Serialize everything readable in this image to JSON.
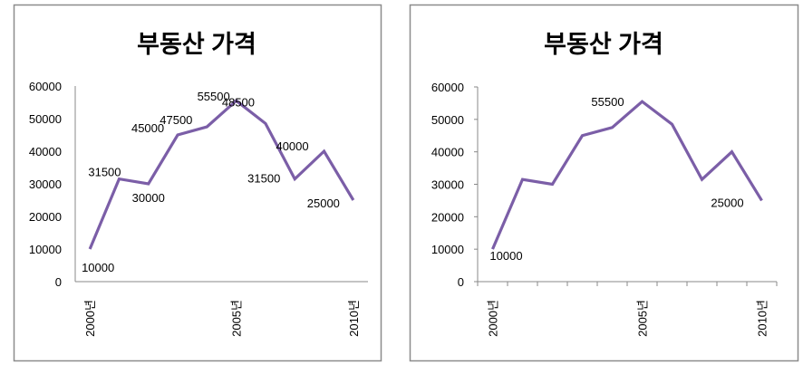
{
  "chart_data": [
    {
      "type": "line",
      "title": "부동산 가격",
      "categories": [
        "2000년",
        "",
        "",
        "",
        "",
        "2005년",
        "",
        "",
        "",
        "2010년"
      ],
      "values": [
        10000,
        31500,
        30000,
        45000,
        47500,
        55500,
        48500,
        31500,
        40000,
        25000
      ],
      "data_labels": [
        "10000",
        "31500",
        "30000",
        "45000",
        "47500",
        "55500",
        "48500",
        "31500",
        "40000",
        "25000"
      ],
      "ylim": [
        0,
        60000
      ],
      "y_ticks": [
        "0",
        "10000",
        "20000",
        "30000",
        "40000",
        "50000",
        "60000"
      ],
      "grid": false,
      "legend": "none",
      "x_tick_marks": false,
      "line_color": "#7b5ea7"
    },
    {
      "type": "line",
      "title": "부동산 가격",
      "categories": [
        "2000년",
        "",
        "",
        "",
        "",
        "2005년",
        "",
        "",
        "",
        "2010년"
      ],
      "values": [
        10000,
        31500,
        30000,
        45000,
        47500,
        55500,
        48500,
        31500,
        40000,
        25000
      ],
      "data_labels": [
        "10000",
        "",
        "",
        "",
        "",
        "55500",
        "",
        "",
        "",
        "25000"
      ],
      "ylim": [
        0,
        60000
      ],
      "y_ticks": [
        "0",
        "10000",
        "20000",
        "30000",
        "40000",
        "50000",
        "60000"
      ],
      "grid": false,
      "legend": "none",
      "x_tick_marks": true,
      "line_color": "#7b5ea7"
    }
  ]
}
